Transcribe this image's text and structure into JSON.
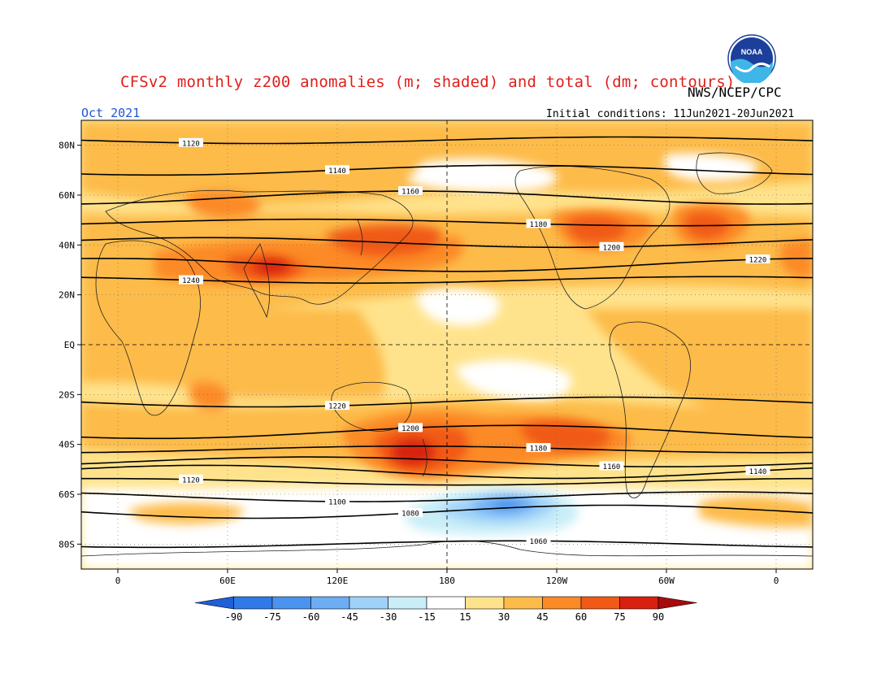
{
  "header": {
    "title": "CFSv2 monthly z200 anomalies (m; shaded) and total (dm; contours)",
    "agency": "NWS/NCEP/CPC",
    "month": "Oct 2021",
    "initial_conditions": "Initial conditions: 11Jun2021-20Jun2021",
    "logo_text": "NOAA"
  },
  "map": {
    "projection": "cylindrical equidistant",
    "lon_range": [
      -20,
      380
    ],
    "lat_range": [
      -90,
      90
    ],
    "lat_labels": [
      "80N",
      "60N",
      "40N",
      "20N",
      "EQ",
      "20S",
      "40S",
      "60S",
      "80S"
    ],
    "lon_labels": [
      "0",
      "60E",
      "120E",
      "180",
      "120W",
      "60W",
      "0"
    ],
    "contours": [
      {
        "label": "1120",
        "lat": 82
      },
      {
        "label": "1140",
        "lat": 70
      },
      {
        "label": "1160",
        "lat": 59
      },
      {
        "label": "1180",
        "lat": 49
      },
      {
        "label": "1200",
        "lat": 41
      },
      {
        "label": "1220",
        "lat": 32
      },
      {
        "label": "1240",
        "lat": 26
      },
      {
        "label": "1220",
        "lat": -23
      },
      {
        "label": "1200",
        "lat": -35
      },
      {
        "label": "1180",
        "lat": -42
      },
      {
        "label": "1160",
        "lat": -47
      },
      {
        "label": "1140",
        "lat": -51
      },
      {
        "label": "1120",
        "lat": -55
      },
      {
        "label": "1100",
        "lat": -61
      },
      {
        "label": "1080",
        "lat": -67
      },
      {
        "label": "1060",
        "lat": -80
      }
    ],
    "anomaly_regions": [
      {
        "level": 45,
        "note": "NH mid-latitude band"
      },
      {
        "level": 75,
        "note": "Asia / West Pacific jet"
      },
      {
        "level": 60,
        "note": "North America"
      },
      {
        "level": 60,
        "note": "North Atlantic"
      },
      {
        "level": 75,
        "note": "SW Pacific near 180"
      },
      {
        "level": 60,
        "note": "South Pacific 120W"
      },
      {
        "level": -45,
        "note": "Amundsen/Ross Sea"
      },
      {
        "level": 0,
        "note": "central Pacific neutral"
      }
    ]
  },
  "colorbar": {
    "labels": [
      "-90",
      "-75",
      "-60",
      "-45",
      "-30",
      "-15",
      "15",
      "30",
      "45",
      "60",
      "75",
      "90"
    ],
    "colors": [
      "#1f5fd8",
      "#2f7ae6",
      "#4a93ee",
      "#6cadf4",
      "#9fd2f8",
      "#c9eef8",
      "#ffffff",
      "#ffe38c",
      "#fdbb4a",
      "#fc8a26",
      "#f05a16",
      "#d7200e",
      "#a70b0b"
    ]
  }
}
